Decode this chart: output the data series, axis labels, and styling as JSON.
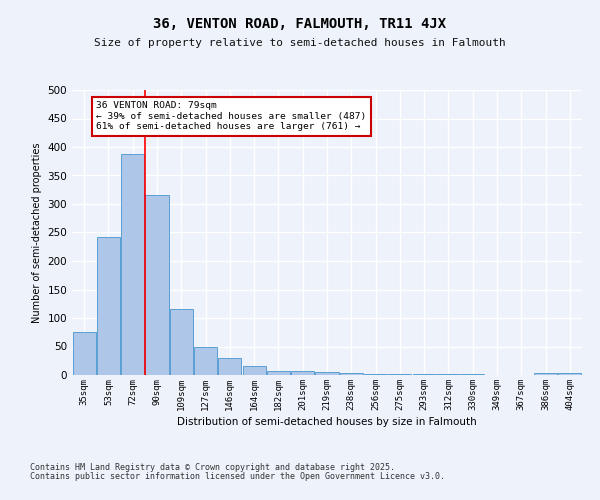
{
  "title": "36, VENTON ROAD, FALMOUTH, TR11 4JX",
  "subtitle": "Size of property relative to semi-detached houses in Falmouth",
  "xlabel": "Distribution of semi-detached houses by size in Falmouth",
  "ylabel": "Number of semi-detached properties",
  "categories": [
    "35sqm",
    "53sqm",
    "72sqm",
    "90sqm",
    "109sqm",
    "127sqm",
    "146sqm",
    "164sqm",
    "182sqm",
    "201sqm",
    "219sqm",
    "238sqm",
    "256sqm",
    "275sqm",
    "293sqm",
    "312sqm",
    "330sqm",
    "349sqm",
    "367sqm",
    "386sqm",
    "404sqm"
  ],
  "values": [
    75,
    242,
    388,
    315,
    115,
    50,
    30,
    15,
    7,
    7,
    5,
    3,
    2,
    2,
    1,
    1,
    1,
    0,
    0,
    4,
    4
  ],
  "bar_color": "#aec6e8",
  "bar_edge_color": "#5a9fd4",
  "red_line_index": 2.5,
  "annotation_text": "36 VENTON ROAD: 79sqm\n← 39% of semi-detached houses are smaller (487)\n61% of semi-detached houses are larger (761) →",
  "annotation_box_color": "#ffffff",
  "annotation_box_edge_color": "#cc0000",
  "background_color": "#eef2fb",
  "grid_color": "#ffffff",
  "footnote1": "Contains HM Land Registry data © Crown copyright and database right 2025.",
  "footnote2": "Contains public sector information licensed under the Open Government Licence v3.0.",
  "ylim": [
    0,
    500
  ],
  "yticks": [
    0,
    50,
    100,
    150,
    200,
    250,
    300,
    350,
    400,
    450,
    500
  ]
}
